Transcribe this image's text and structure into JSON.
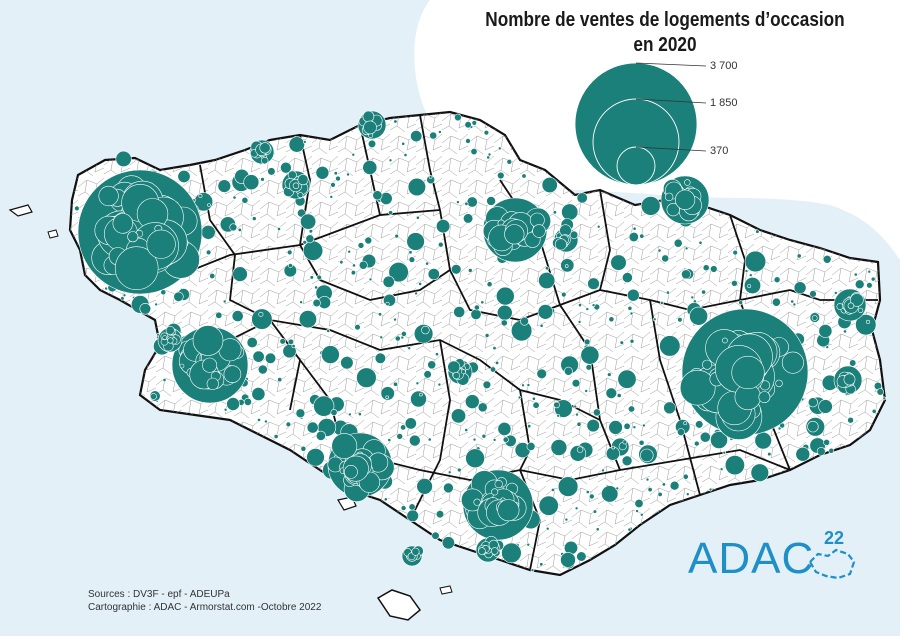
{
  "map": {
    "title_line1": "Nombre de ventes de logements d’occasion",
    "title_line2": "en 2020",
    "colors": {
      "sea": "#e3f0f8",
      "land": "#ffffff",
      "circle": "#1b7f7a",
      "boundary": "#111111",
      "commune": "#9a9a9a",
      "logo": "#1e8fc7"
    },
    "legend": {
      "values": [
        3700,
        1850,
        370
      ],
      "labels": [
        "3 700",
        "1 850",
        "370"
      ]
    }
  },
  "sources": {
    "line1": "Sources : DV3F - epf - ADEUPa",
    "line2": "Cartographie : ADAC - Armorstat.com -Octobre 2022"
  },
  "logo": {
    "text": "ADAC",
    "superscript": "22"
  }
}
